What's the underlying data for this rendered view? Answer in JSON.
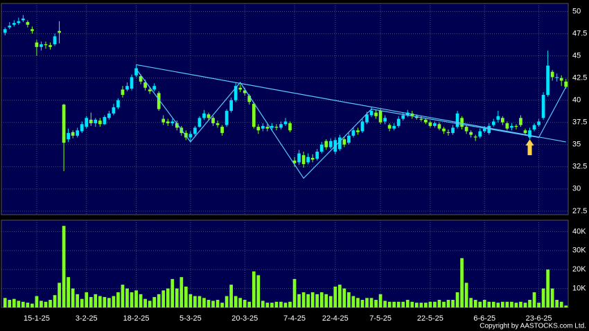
{
  "chart_data": {
    "type": "candlestick",
    "categories": [
      null,
      null,
      null,
      null,
      null,
      null,
      null,
      "15-1-25",
      null,
      null,
      null,
      null,
      null,
      null,
      null,
      null,
      null,
      null,
      "3-2-25",
      null,
      null,
      null,
      null,
      null,
      null,
      null,
      null,
      null,
      null,
      "18-2-25",
      null,
      null,
      null,
      null,
      null,
      null,
      null,
      null,
      null,
      null,
      null,
      "5-3-25",
      null,
      null,
      null,
      null,
      null,
      null,
      null,
      null,
      null,
      null,
      null,
      "20-3-25",
      null,
      null,
      null,
      null,
      null,
      null,
      null,
      null,
      null,
      null,
      "7-4-25",
      null,
      null,
      null,
      null,
      null,
      null,
      null,
      null,
      "22-4-25",
      null,
      null,
      null,
      null,
      null,
      null,
      null,
      null,
      null,
      "7-5-25",
      null,
      null,
      null,
      null,
      null,
      null,
      null,
      null,
      null,
      null,
      "22-5-25",
      null,
      null,
      null,
      null,
      null,
      null,
      null,
      null,
      null,
      null,
      null,
      "6-6-25",
      null,
      null,
      null,
      null,
      null,
      null,
      null,
      null,
      null,
      null,
      null,
      "23-6-25",
      null,
      null,
      null,
      null,
      null,
      null
    ],
    "open": [
      47.6,
      48.2,
      48.5,
      48.7,
      49.0,
      48.8,
      48.0,
      46.5,
      46.0,
      46.3,
      46.2,
      46.3,
      47.8,
      39.5,
      35.6,
      36.4,
      36.0,
      36.5,
      37.0,
      37.8,
      37.4,
      37.7,
      37.3,
      38.0,
      38.5,
      39.2,
      41.2,
      41.2,
      41.3,
      42.8,
      42.7,
      42.0,
      41.2,
      41.2,
      40.8,
      37.9,
      37.6,
      37.4,
      37.4,
      36.9,
      36.3,
      35.8,
      36.2,
      37.0,
      38.0,
      38.4,
      38.0,
      37.4,
      37.0,
      37.2,
      38.8,
      40.0,
      41.4,
      41.1,
      40.5,
      39.6,
      37.0,
      36.8,
      37.0,
      36.9,
      37.0,
      36.9,
      37.3,
      37.4,
      33.2,
      33.0,
      33.8,
      33.0,
      33.5,
      33.4,
      34.2,
      35.4,
      34.7,
      34.2,
      34.5,
      35.6,
      35.2,
      36.0,
      36.6,
      36.5,
      37.5,
      38.3,
      38.6,
      38.8,
      37.6,
      37.2,
      36.8,
      37.1,
      37.9,
      38.3,
      38.5,
      38.2,
      37.9,
      37.8,
      37.5,
      37.1,
      37.3,
      36.8,
      36.4,
      36.3,
      37.0,
      38.0,
      37.0,
      36.4,
      35.9,
      35.9,
      36.5,
      36.3,
      37.2,
      37.8,
      38.0,
      37.4,
      36.9,
      37.1,
      38.0,
      36.6,
      35.8,
      36.7,
      37.2,
      38.0,
      40.6,
      43.2,
      42.5,
      42.5,
      42.1
    ],
    "high": [
      48.2,
      48.8,
      49.0,
      49.3,
      49.6,
      49.0,
      48.3,
      46.8,
      46.6,
      46.6,
      46.5,
      47.5,
      48.9,
      39.6,
      36.8,
      36.6,
      36.9,
      37.6,
      38.2,
      38.6,
      38.0,
      38.0,
      38.3,
      38.8,
      39.6,
      40.2,
      41.6,
      42.0,
      42.9,
      44.0,
      42.9,
      42.3,
      41.5,
      41.9,
      41.0,
      38.3,
      37.9,
      37.9,
      37.7,
      37.1,
      36.6,
      36.5,
      37.1,
      38.2,
      38.9,
      38.6,
      38.2,
      37.7,
      37.2,
      39.0,
      40.3,
      42.0,
      41.8,
      41.4,
      40.7,
      39.8,
      37.3,
      37.4,
      37.3,
      37.4,
      37.3,
      37.6,
      38.0,
      37.6,
      33.6,
      34.4,
      34.2,
      34.0,
      33.9,
      34.5,
      35.3,
      35.6,
      35.7,
      35.8,
      36.1,
      35.9,
      36.3,
      36.9,
      36.9,
      37.9,
      38.7,
      39.2,
      38.9,
      39.0,
      38.3,
      37.4,
      37.4,
      38.2,
      38.6,
      38.9,
      38.8,
      38.4,
      38.2,
      38.0,
      37.7,
      37.6,
      37.5,
      37.0,
      36.7,
      37.2,
      38.8,
      38.2,
      37.2,
      36.6,
      36.1,
      36.8,
      37.1,
      37.4,
      37.9,
      38.8,
      38.2,
      37.6,
      37.4,
      37.3,
      38.3,
      36.8,
      36.9,
      37.4,
      37.9,
      40.9,
      45.6,
      43.4,
      43.0,
      42.8,
      42.4
    ],
    "low": [
      47.3,
      48.0,
      48.3,
      48.5,
      48.8,
      48.2,
      47.5,
      45.0,
      45.6,
      45.8,
      45.7,
      46.1,
      46.4,
      32.0,
      35.3,
      35.7,
      35.8,
      36.3,
      36.8,
      37.1,
      37.0,
      37.0,
      37.2,
      37.8,
      38.3,
      39.0,
      40.3,
      41.0,
      41.1,
      42.6,
      41.8,
      41.1,
      40.7,
      41.0,
      38.8,
      37.2,
      37.1,
      37.1,
      36.6,
      36.0,
      35.5,
      35.4,
      36.0,
      36.9,
      37.8,
      37.7,
      37.1,
      36.9,
      36.0,
      37.0,
      38.6,
      39.8,
      40.9,
      40.5,
      39.5,
      36.8,
      36.2,
      36.5,
      36.5,
      36.6,
      36.6,
      36.7,
      37.1,
      36.4,
      32.5,
      32.7,
      32.4,
      32.8,
      33.0,
      33.2,
      34.0,
      34.4,
      34.5,
      33.9,
      34.3,
      34.7,
      35.0,
      35.8,
      36.1,
      36.3,
      37.3,
      38.1,
      37.9,
      37.3,
      37.3,
      36.5,
      36.6,
      36.9,
      37.7,
      38.1,
      37.9,
      37.8,
      37.6,
      37.3,
      36.9,
      36.9,
      36.6,
      36.2,
      36.0,
      36.1,
      36.8,
      36.7,
      36.2,
      35.8,
      35.4,
      35.7,
      36.3,
      36.1,
      37.0,
      37.5,
      37.2,
      36.6,
      36.6,
      36.7,
      37.0,
      36.0,
      35.6,
      36.5,
      37.0,
      37.8,
      40.4,
      42.2,
      42.1,
      41.6,
      41.3
    ],
    "close": [
      48.0,
      48.4,
      48.7,
      48.9,
      49.2,
      48.5,
      47.8,
      46.0,
      46.3,
      46.2,
      46.0,
      47.2,
      47.6,
      35.2,
      36.3,
      36.0,
      36.6,
      37.3,
      38.0,
      37.4,
      37.8,
      37.3,
      38.1,
      38.5,
      39.2,
      40.0,
      40.6,
      41.6,
      42.6,
      43.6,
      42.1,
      41.4,
      41.0,
      41.6,
      39.0,
      37.5,
      37.4,
      37.6,
      36.9,
      36.3,
      35.8,
      36.2,
      36.9,
      38.0,
      38.5,
      38.0,
      37.4,
      37.2,
      36.3,
      38.8,
      40.0,
      41.6,
      41.2,
      40.8,
      39.8,
      37.0,
      36.6,
      37.1,
      36.8,
      37.1,
      36.9,
      37.3,
      37.6,
      36.6,
      32.9,
      34.0,
      32.8,
      33.6,
      33.3,
      34.2,
      35.0,
      34.7,
      35.4,
      35.5,
      35.8,
      35.0,
      36.0,
      36.6,
      36.4,
      37.6,
      38.4,
      38.8,
      38.2,
      37.5,
      38.0,
      36.8,
      37.1,
      37.9,
      38.3,
      38.6,
      38.2,
      38.0,
      37.8,
      37.5,
      37.1,
      37.4,
      36.8,
      36.5,
      36.3,
      36.9,
      38.5,
      37.0,
      36.5,
      36.1,
      35.8,
      36.5,
      36.8,
      37.1,
      37.6,
      38.2,
      37.5,
      36.8,
      37.1,
      37.0,
      37.2,
      36.3,
      36.6,
      37.2,
      37.6,
      40.6,
      43.9,
      42.6,
      42.6,
      42.2,
      41.5
    ],
    "volume": [
      5000,
      4000,
      4500,
      3500,
      3000,
      2500,
      2000,
      6000,
      3500,
      3000,
      4000,
      6500,
      13000,
      43000,
      16000,
      10000,
      7000,
      4500,
      8000,
      5500,
      7000,
      6000,
      5500,
      5000,
      6000,
      8000,
      12000,
      10000,
      8000,
      9000,
      7000,
      4500,
      3500,
      5500,
      7000,
      9000,
      10000,
      15000,
      10000,
      16000,
      11000,
      7000,
      6000,
      6000,
      5000,
      4000,
      3500,
      4000,
      2500,
      6000,
      12000,
      6000,
      5000,
      4000,
      3000,
      19000,
      17000,
      3500,
      2500,
      2500,
      3000,
      3000,
      2500,
      3000,
      15000,
      7000,
      8000,
      7000,
      8000,
      7000,
      8000,
      7000,
      6000,
      11000,
      12000,
      10000,
      8000,
      6000,
      5000,
      4000,
      5000,
      5000,
      4000,
      7000,
      3500,
      3000,
      3000,
      3000,
      3000,
      4000,
      3000,
      2500,
      2500,
      2500,
      3000,
      3000,
      4000,
      3000,
      4000,
      4000,
      8000,
      26000,
      13000,
      5000,
      4000,
      3000,
      4000,
      3000,
      3000,
      2500,
      3000,
      3000,
      3000,
      2500,
      3000,
      2500,
      4000,
      8000,
      2500,
      10000,
      20000,
      10000,
      4000,
      3000,
      1000
    ],
    "up_color": "#00e5ff",
    "down_color": "#80ff20",
    "volume_color": "#80ff20",
    "ylim": [
      27.1,
      50.9
    ],
    "yticks": [
      27.5,
      30,
      32.5,
      35,
      37.5,
      40,
      42.5,
      45,
      47.5,
      50
    ],
    "volume_ylim": [
      0,
      46000
    ],
    "volume_yticks": [
      {
        "value": 10000,
        "label": "10K"
      },
      {
        "value": 20000,
        "label": "20K"
      },
      {
        "value": 30000,
        "label": "30K"
      },
      {
        "value": 40000,
        "label": "40K"
      }
    ],
    "grid": true,
    "trendlines": [
      {
        "color": "#5bc8ff",
        "x": [
          29,
          124
        ],
        "y": [
          44,
          35.3
        ]
      },
      {
        "color": "#5bc8ff",
        "x": [
          29,
          41,
          52,
          66,
          81,
          118,
          124
        ],
        "y": [
          43.5,
          35.3,
          42,
          31.2,
          39,
          35.8,
          41.5
        ]
      }
    ],
    "marker": {
      "color": "#ffd24a",
      "x": 116,
      "y": 35.6
    },
    "copyright": "Copyright by AASTOCKS.com Ltd."
  }
}
